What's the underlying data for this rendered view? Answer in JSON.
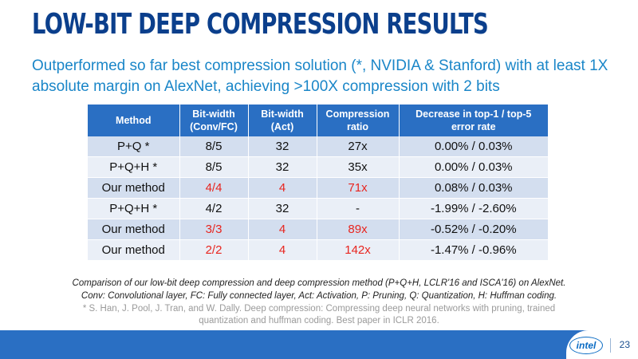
{
  "slide": {
    "title": "LOW-BIT DEEP COMPRESSION RESULTS",
    "subtitle": "Outperformed so far best compression solution (*, NVIDIA & Stanford) with at least 1X absolute margin on AlexNet, achieving >100X compression with 2 bits",
    "caption_line1": "Comparison of our low-bit deep compression and deep compression method (P+Q+H, LCLR'16 and ISCA'16) on AlexNet.",
    "caption_line2": "Conv: Convolutional layer, FC: Fully connected layer, Act: Activation, P: Pruning, Q: Quantization, H: Huffman coding.",
    "reference_line1": "* S. Han, J. Pool, J. Tran, and W. Dally. Deep compression: Compressing deep neural networks with pruning, trained",
    "reference_line2": "quantization and huffman coding. Best paper in ICLR 2016.",
    "logo_text": "intel",
    "page_number": "23",
    "colors": {
      "title": "#0b3f8c",
      "subtitle": "#1a86c8",
      "header_bg": "#2a6fc3",
      "highlight": "#e8251f"
    }
  },
  "table": {
    "headers": [
      {
        "line1": "Method",
        "line2": ""
      },
      {
        "line1": "Bit-width",
        "line2": "(Conv/FC)"
      },
      {
        "line1": "Bit-width",
        "line2": "(Act)"
      },
      {
        "line1": "Compression",
        "line2": "ratio"
      },
      {
        "line1": "Decrease in top-1 / top-5",
        "line2": "error rate"
      }
    ],
    "rows": [
      {
        "method": "P+Q *",
        "bw_conv_fc": "8/5",
        "bw_act": "32",
        "ratio": "27x",
        "decrease": "0.00%  / 0.03%",
        "highlight": false
      },
      {
        "method": "P+Q+H *",
        "bw_conv_fc": "8/5",
        "bw_act": "32",
        "ratio": "35x",
        "decrease": "0.00% / 0.03%",
        "highlight": false
      },
      {
        "method": "Our method",
        "bw_conv_fc": "4/4",
        "bw_act": "4",
        "ratio": "71x",
        "decrease": "0.08% / 0.03%",
        "highlight": true
      },
      {
        "method": "P+Q+H *",
        "bw_conv_fc": "4/2",
        "bw_act": "32",
        "ratio": "-",
        "decrease": "-1.99% / -2.60%",
        "highlight": false
      },
      {
        "method": "Our method",
        "bw_conv_fc": "3/3",
        "bw_act": "4",
        "ratio": "89x",
        "decrease": "-0.52% / -0.20%",
        "highlight": true
      },
      {
        "method": "Our method",
        "bw_conv_fc": "2/2",
        "bw_act": "4",
        "ratio": "142x",
        "decrease": "-1.47% / -0.96%",
        "highlight": true
      }
    ]
  }
}
